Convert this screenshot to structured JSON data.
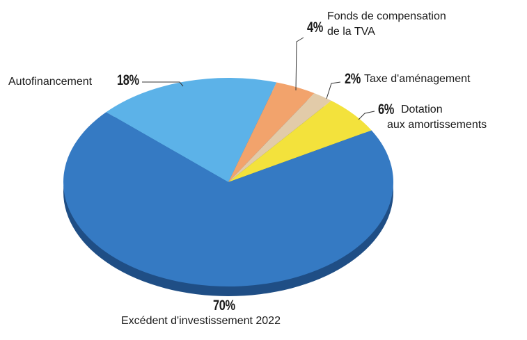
{
  "chart_data": {
    "type": "pie",
    "categories": [
      "Autofinancement",
      "Fonds de compensation\nde la TVA",
      "Taxe d'aménagement",
      "Dotation\naux amortissements",
      "Excédent d'investissement 2022"
    ],
    "values": [
      18,
      4,
      2,
      6,
      70
    ],
    "value_labels": [
      "18%",
      "4%",
      "2%",
      "6%",
      "70%"
    ],
    "colors": [
      "#5cb2e8",
      "#f2a36c",
      "#e2cba9",
      "#f3e23c",
      "#357ac3"
    ]
  }
}
